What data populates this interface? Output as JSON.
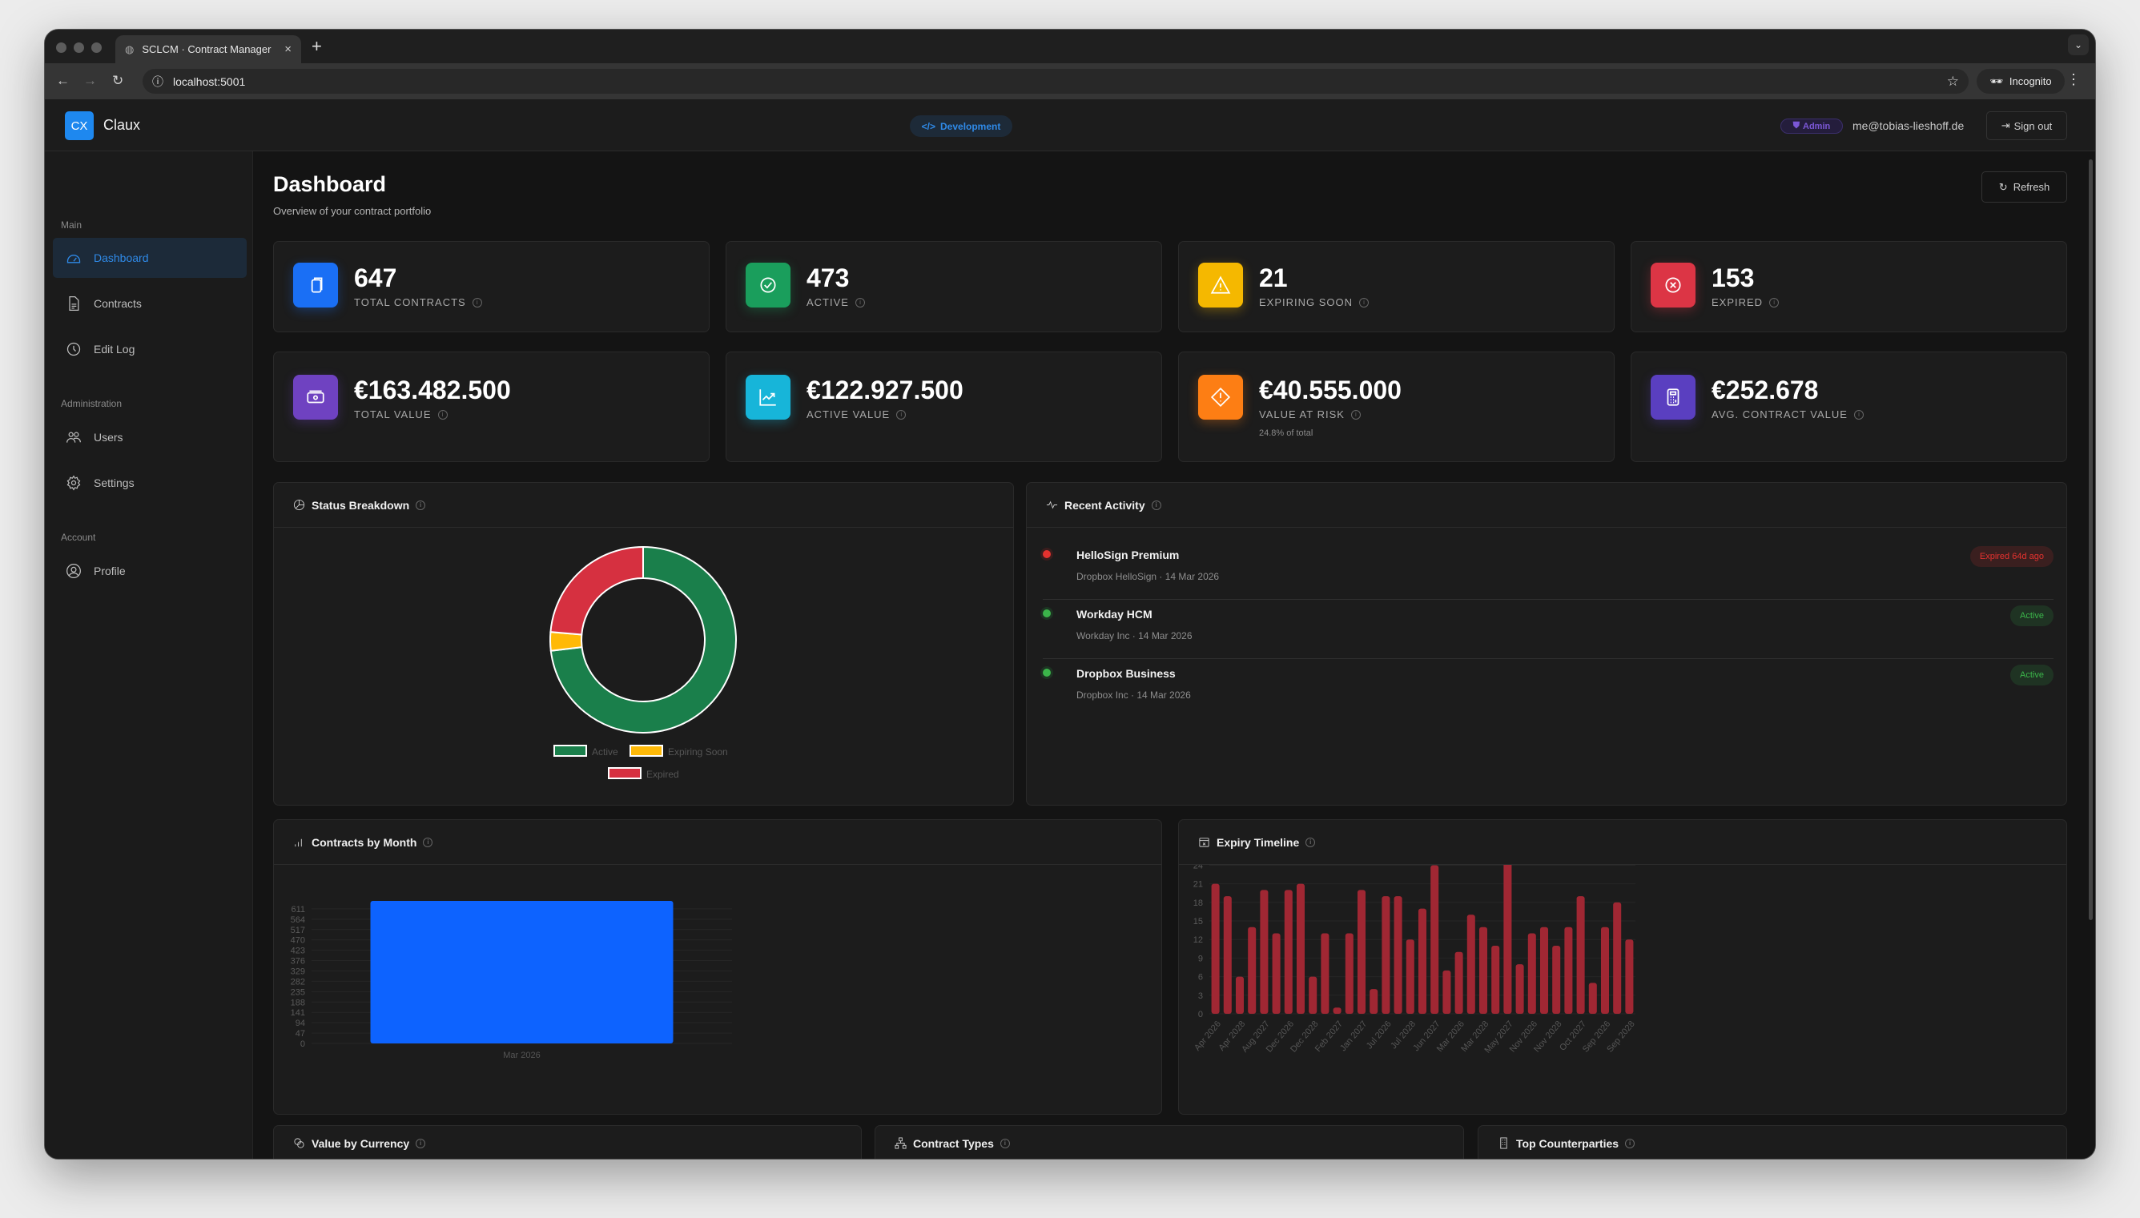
{
  "browser": {
    "tab_title": "SCLCM · Contract Manager",
    "url": "localhost:5001",
    "incognito_label": "Incognito"
  },
  "header": {
    "logo_text": "CX",
    "brand": "Claux",
    "env_label": "Development",
    "role_badge": "Admin",
    "email": "me@tobias-lieshoff.de",
    "signout_label": "Sign out"
  },
  "sidebar": {
    "sections": [
      {
        "label": "Main",
        "items": [
          {
            "label": "Dashboard",
            "icon": "gauge-icon",
            "active": true
          },
          {
            "label": "Contracts",
            "icon": "document-icon"
          },
          {
            "label": "Edit Log",
            "icon": "clock-icon"
          }
        ]
      },
      {
        "label": "Administration",
        "items": [
          {
            "label": "Users",
            "icon": "users-icon"
          },
          {
            "label": "Settings",
            "icon": "gear-icon"
          }
        ]
      },
      {
        "label": "Account",
        "items": [
          {
            "label": "Profile",
            "icon": "user-circle-icon"
          }
        ]
      }
    ]
  },
  "page": {
    "title": "Dashboard",
    "subtitle": "Overview of your contract portfolio",
    "refresh_label": "Refresh"
  },
  "stats": [
    {
      "value": "647",
      "label": "TOTAL CONTRACTS",
      "color": "#1a6ff5",
      "icon": "copy-icon"
    },
    {
      "value": "473",
      "label": "ACTIVE",
      "color": "#1a9e5c",
      "icon": "check-circle-icon"
    },
    {
      "value": "21",
      "label": "EXPIRING SOON",
      "color": "#f5b800",
      "icon": "warning-icon"
    },
    {
      "value": "153",
      "label": "EXPIRED",
      "color": "#dc3545",
      "icon": "x-circle-icon"
    },
    {
      "value": "€163.482.500",
      "label": "TOTAL VALUE",
      "color": "#6f42c1",
      "icon": "cash-icon"
    },
    {
      "value": "€122.927.500",
      "label": "ACTIVE VALUE",
      "color": "#17b5d9",
      "icon": "trend-up-icon"
    },
    {
      "value": "€40.555.000",
      "label": "VALUE AT RISK",
      "sub": "24.8% of total",
      "color": "#fd7e14",
      "icon": "diamond-alert-icon"
    },
    {
      "value": "€252.678",
      "label": "AVG. CONTRACT VALUE",
      "color": "#5a3fc0",
      "icon": "calculator-icon"
    }
  ],
  "panels": {
    "status": "Status Breakdown",
    "activity": "Recent Activity",
    "by_month": "Contracts by Month",
    "expiry": "Expiry Timeline",
    "currency": "Value by Currency",
    "types": "Contract Types",
    "counterparties": "Top Counterparties"
  },
  "activity": [
    {
      "name": "HelloSign Premium",
      "meta": "Dropbox HelloSign · 14 Mar 2026",
      "badge": "Expired 64d ago",
      "status": "expired"
    },
    {
      "name": "Workday HCM",
      "meta": "Workday Inc · 14 Mar 2026",
      "badge": "Active",
      "status": "active"
    },
    {
      "name": "Dropbox Business",
      "meta": "Dropbox Inc · 14 Mar 2026",
      "badge": "Active",
      "status": "active"
    }
  ],
  "chart_data": [
    {
      "type": "pie",
      "variant": "doughnut",
      "labels": [
        "Active",
        "Expiring Soon",
        "Expired"
      ],
      "values": [
        473,
        21,
        153
      ],
      "colors": [
        "#1a7f4b",
        "#ffb907",
        "#d63040"
      ],
      "legend": "bottom"
    },
    {
      "type": "bar",
      "categories": [
        "Mar 2026"
      ],
      "values": [
        647
      ],
      "color": "#0d63ff",
      "yticks": [
        0,
        47,
        94,
        141,
        188,
        235,
        282,
        329,
        376,
        423,
        470,
        517,
        564,
        611
      ],
      "ylim": [
        0,
        647
      ],
      "grid": true
    },
    {
      "type": "bar",
      "categories": [
        "Apr 2026",
        "",
        "Apr 2028",
        "",
        "Aug 2027",
        "",
        "Dec 2026",
        "",
        "Dec 2028",
        "",
        "Feb 2027",
        "",
        "Jan 2027",
        "",
        "Jul 2026",
        "",
        "Jul 2028",
        "",
        "Jun 2027",
        "",
        "Mar 2026",
        "",
        "Mar 2028",
        "",
        "May 2027",
        "",
        "Nov 2026",
        "",
        "Nov 2028",
        "",
        "Oct 2027",
        "",
        "Sep 2026",
        "",
        "Sep 2028"
      ],
      "values": [
        21,
        19,
        6,
        14,
        20,
        13,
        20,
        21,
        6,
        13,
        1,
        13,
        20,
        4,
        19,
        19,
        12,
        17,
        24,
        7,
        10,
        16,
        14,
        11,
        26,
        8,
        13,
        14,
        11,
        14,
        19,
        5,
        14,
        18,
        12
      ],
      "color": "#a02733",
      "yticks": [
        0,
        3,
        6,
        9,
        12,
        15,
        18,
        21,
        24
      ],
      "ylim": [
        0,
        26
      ],
      "grid": true
    }
  ]
}
